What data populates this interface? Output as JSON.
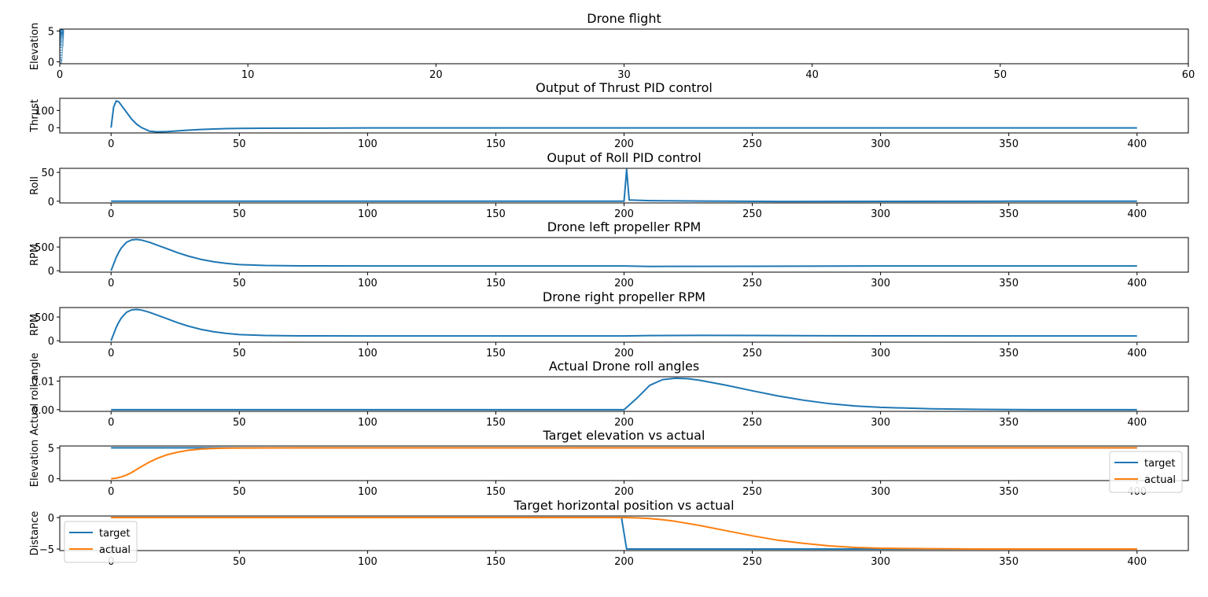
{
  "colors": {
    "series1": "#1f77b4",
    "series2": "#ff7f0e"
  },
  "chart_data": [
    {
      "type": "scatter",
      "title": "Drone flight",
      "xlabel": "",
      "ylabel": "Elevation",
      "xlim": [
        0,
        60
      ],
      "ylim": [
        -0.3,
        5.3
      ],
      "xticks": [
        0,
        10,
        20,
        30,
        40,
        50,
        60
      ],
      "yticks": [
        0,
        5
      ],
      "legend": "none",
      "series": [
        {
          "x": [
            0.02,
            0.03,
            0.04,
            0.05,
            0.06,
            0.07,
            0.08,
            0.09,
            0.1,
            0.1,
            0.11,
            0.11,
            0.12,
            0.12,
            0.12,
            0.12,
            0.12,
            0.12,
            0.12,
            0.12,
            0.12,
            0.12,
            0.12,
            0.12
          ],
          "y": [
            0,
            0.2,
            0.5,
            0.9,
            1.3,
            1.7,
            2.1,
            2.5,
            2.8,
            3.1,
            3.4,
            3.7,
            3.9,
            4.1,
            4.3,
            4.5,
            4.6,
            4.7,
            4.8,
            4.85,
            4.9,
            4.95,
            5,
            5
          ]
        }
      ]
    },
    {
      "type": "line",
      "title": "Output of Thrust PID control",
      "xlabel": "",
      "ylabel": "Thrust",
      "xlim": [
        -20,
        420
      ],
      "ylim": [
        -30,
        170
      ],
      "xticks": [
        0,
        50,
        100,
        150,
        200,
        250,
        300,
        350,
        400
      ],
      "yticks": [
        0,
        100
      ],
      "legend": "none",
      "series": [
        {
          "x": [
            0,
            1,
            2,
            3,
            4,
            6,
            8,
            10,
            12,
            15,
            18,
            22,
            26,
            30,
            35,
            40,
            45,
            50,
            60,
            80,
            100,
            150,
            200,
            250,
            300,
            350,
            400
          ],
          "y": [
            0,
            120,
            155,
            150,
            130,
            90,
            50,
            20,
            0,
            -20,
            -24,
            -22,
            -18,
            -14,
            -10,
            -7,
            -5,
            -4,
            -3,
            -2,
            -1,
            -1,
            -1,
            -1,
            -1,
            -1,
            -1
          ]
        }
      ]
    },
    {
      "type": "line",
      "title": "Ouput of Roll PID control",
      "xlabel": "",
      "ylabel": "Roll",
      "xlim": [
        -20,
        420
      ],
      "ylim": [
        -3,
        57
      ],
      "xticks": [
        0,
        50,
        100,
        150,
        200,
        250,
        300,
        350,
        400
      ],
      "yticks": [
        0,
        50
      ],
      "legend": "none",
      "series": [
        {
          "x": [
            0,
            100,
            200,
            201,
            202,
            203,
            210,
            220,
            240,
            260,
            300,
            350,
            400
          ],
          "y": [
            0,
            0,
            0,
            55,
            2,
            2,
            1,
            0.5,
            0,
            -0.5,
            -0.3,
            0,
            0
          ]
        }
      ]
    },
    {
      "type": "line",
      "title": "Drone left propeller RPM",
      "xlabel": "",
      "ylabel": "RPM",
      "xlim": [
        -20,
        420
      ],
      "ylim": [
        -30,
        700
      ],
      "xticks": [
        0,
        50,
        100,
        150,
        200,
        250,
        300,
        350,
        400
      ],
      "yticks": [
        0,
        500
      ],
      "legend": "none",
      "series": [
        {
          "x": [
            0,
            1,
            2,
            3,
            4,
            6,
            8,
            10,
            12,
            15,
            18,
            22,
            26,
            30,
            35,
            40,
            45,
            50,
            60,
            70,
            80,
            100,
            150,
            200,
            210,
            220,
            250,
            300,
            350,
            400
          ],
          "y": [
            0,
            140,
            280,
            390,
            480,
            600,
            650,
            660,
            645,
            600,
            540,
            460,
            380,
            310,
            240,
            190,
            155,
            130,
            110,
            104,
            102,
            100,
            100,
            100,
            90,
            92,
            95,
            100,
            100,
            100
          ]
        }
      ]
    },
    {
      "type": "line",
      "title": "Drone right propeller RPM",
      "xlabel": "",
      "ylabel": "RPM",
      "xlim": [
        -20,
        420
      ],
      "ylim": [
        -30,
        700
      ],
      "xticks": [
        0,
        50,
        100,
        150,
        200,
        250,
        300,
        350,
        400
      ],
      "yticks": [
        0,
        500
      ],
      "legend": "none",
      "series": [
        {
          "x": [
            0,
            1,
            2,
            3,
            4,
            6,
            8,
            10,
            12,
            15,
            18,
            22,
            26,
            30,
            35,
            40,
            45,
            50,
            60,
            70,
            80,
            100,
            150,
            200,
            210,
            220,
            230,
            250,
            280,
            300,
            350,
            400
          ],
          "y": [
            0,
            140,
            280,
            390,
            480,
            600,
            650,
            660,
            645,
            600,
            540,
            460,
            380,
            310,
            240,
            190,
            155,
            130,
            110,
            104,
            102,
            100,
            100,
            100,
            108,
            112,
            113,
            110,
            105,
            102,
            100,
            100
          ]
        }
      ]
    },
    {
      "type": "line",
      "title": "Actual Drone roll angles",
      "xlabel": "",
      "ylabel": "Actual roll angle",
      "xlim": [
        -20,
        420
      ],
      "ylim": [
        -0.0006,
        0.0115
      ],
      "xticks": [
        0,
        50,
        100,
        150,
        200,
        250,
        300,
        350,
        400
      ],
      "yticks": [
        0.0,
        0.01
      ],
      "ytick_labels": [
        "0.00",
        "0.01"
      ],
      "legend": "none",
      "series": [
        {
          "x": [
            0,
            100,
            200,
            205,
            210,
            215,
            220,
            225,
            230,
            240,
            250,
            260,
            270,
            280,
            290,
            300,
            320,
            340,
            360,
            380,
            400
          ],
          "y": [
            0,
            0,
            0,
            0.004,
            0.0085,
            0.0105,
            0.011,
            0.0108,
            0.0102,
            0.0085,
            0.0066,
            0.0048,
            0.0033,
            0.0021,
            0.0013,
            0.0008,
            0.0003,
            0.0001,
            0,
            0,
            0
          ]
        }
      ]
    },
    {
      "type": "line",
      "title": "Target elevation vs actual",
      "xlabel": "",
      "ylabel": "Elevation",
      "xlim": [
        -20,
        420
      ],
      "ylim": [
        -0.3,
        5.3
      ],
      "xticks": [
        0,
        50,
        100,
        150,
        200,
        250,
        300,
        350,
        400
      ],
      "yticks": [
        0,
        5
      ],
      "legend": "lower right",
      "series": [
        {
          "name": "target",
          "x": [
            0,
            400
          ],
          "y": [
            5,
            5
          ]
        },
        {
          "name": "actual",
          "x": [
            0,
            2,
            4,
            6,
            8,
            10,
            12,
            15,
            18,
            22,
            26,
            30,
            35,
            40,
            45,
            50,
            60,
            80,
            100,
            200,
            400
          ],
          "y": [
            0,
            0.1,
            0.3,
            0.6,
            1.0,
            1.5,
            2.0,
            2.7,
            3.3,
            3.9,
            4.3,
            4.6,
            4.8,
            4.9,
            4.95,
            4.97,
            4.99,
            5,
            5,
            5,
            5
          ]
        }
      ]
    },
    {
      "type": "line",
      "title": "Target horizontal position vs actual",
      "xlabel": "",
      "ylabel": "Distance",
      "xlim": [
        -20,
        420
      ],
      "ylim": [
        -5.25,
        0.25
      ],
      "xticks": [
        0,
        50,
        100,
        150,
        200,
        250,
        300,
        350,
        400
      ],
      "yticks": [
        0,
        -5
      ],
      "legend": "lower left",
      "series": [
        {
          "name": "target",
          "x": [
            0,
            199,
            200,
            201,
            400
          ],
          "y": [
            0,
            0,
            -2.5,
            -5,
            -5
          ]
        },
        {
          "name": "actual",
          "x": [
            0,
            200,
            205,
            210,
            215,
            220,
            230,
            240,
            250,
            260,
            270,
            280,
            290,
            300,
            320,
            340,
            360,
            380,
            400
          ],
          "y": [
            0,
            0,
            -0.05,
            -0.15,
            -0.35,
            -0.6,
            -1.3,
            -2.1,
            -2.9,
            -3.6,
            -4.1,
            -4.5,
            -4.75,
            -4.88,
            -4.96,
            -5,
            -5,
            -5,
            -5
          ]
        }
      ]
    }
  ]
}
